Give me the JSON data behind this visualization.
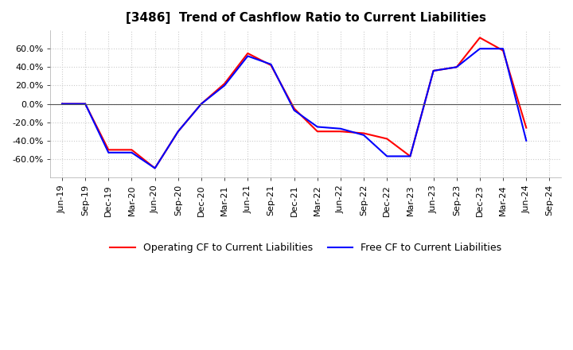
{
  "title": "[3486]  Trend of Cashflow Ratio to Current Liabilities",
  "x_labels": [
    "Jun-19",
    "Sep-19",
    "Dec-19",
    "Mar-20",
    "Jun-20",
    "Sep-20",
    "Dec-20",
    "Mar-21",
    "Jun-21",
    "Sep-21",
    "Dec-21",
    "Mar-22",
    "Jun-22",
    "Sep-22",
    "Dec-22",
    "Mar-23",
    "Jun-23",
    "Sep-23",
    "Dec-23",
    "Mar-24",
    "Jun-24",
    "Sep-24"
  ],
  "operating_cf": [
    0.0,
    0.0,
    -0.5,
    -0.5,
    -0.7,
    -0.3,
    0.0,
    0.22,
    0.55,
    0.42,
    -0.05,
    -0.3,
    -0.3,
    -0.32,
    -0.38,
    -0.57,
    0.36,
    0.4,
    0.72,
    0.58,
    -0.26,
    null
  ],
  "free_cf": [
    0.0,
    0.0,
    -0.53,
    -0.53,
    -0.7,
    -0.3,
    0.0,
    0.2,
    0.52,
    0.43,
    -0.07,
    -0.25,
    -0.27,
    -0.34,
    -0.57,
    -0.57,
    0.36,
    0.4,
    0.6,
    0.6,
    -0.4,
    null
  ],
  "ylim": [
    -0.8,
    0.8
  ],
  "yticks": [
    -0.6,
    -0.4,
    -0.2,
    0.0,
    0.2,
    0.4,
    0.6
  ],
  "operating_color": "#ff0000",
  "free_color": "#0000ff",
  "grid_color": "#cccccc",
  "background_color": "#ffffff",
  "legend_operating": "Operating CF to Current Liabilities",
  "legend_free": "Free CF to Current Liabilities",
  "title_fontsize": 11,
  "tick_fontsize": 8,
  "legend_fontsize": 9
}
